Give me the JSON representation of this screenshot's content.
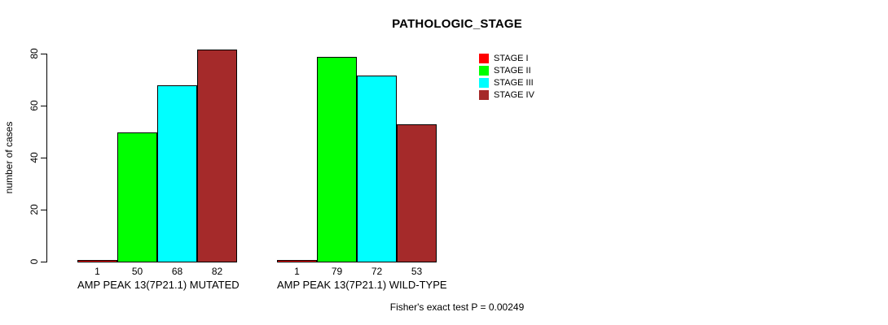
{
  "page": {
    "background": "#ffffff",
    "text_color": "#000000"
  },
  "chart_data": {
    "type": "bar",
    "title": "PATHOLOGIC_STAGE",
    "ylabel": "number of cases",
    "xlabel": "",
    "ylim": [
      0,
      80
    ],
    "yticks": [
      0,
      20,
      40,
      60,
      80
    ],
    "grid": false,
    "legend_position": "top-right",
    "categories": [
      "AMP PEAK 13(7P21.1) MUTATED",
      "AMP PEAK 13(7P21.1) WILD-TYPE"
    ],
    "series": [
      {
        "name": "STAGE I",
        "color": "#FF0000",
        "values": [
          1,
          1
        ]
      },
      {
        "name": "STAGE II",
        "color": "#00FF00",
        "values": [
          50,
          79
        ]
      },
      {
        "name": "STAGE III",
        "color": "#00FFFF",
        "values": [
          68,
          72
        ]
      },
      {
        "name": "STAGE IV",
        "color": "#A52A2A",
        "values": [
          82,
          53
        ]
      }
    ],
    "show_value_labels": true,
    "bar_value_labels": [
      [
        1,
        50,
        68,
        82
      ],
      [
        1,
        79,
        72,
        53
      ]
    ],
    "annotation": "Fisher's exact test P = 0.00249",
    "bar_border_color": "#000000",
    "axis_color": "#000000"
  }
}
